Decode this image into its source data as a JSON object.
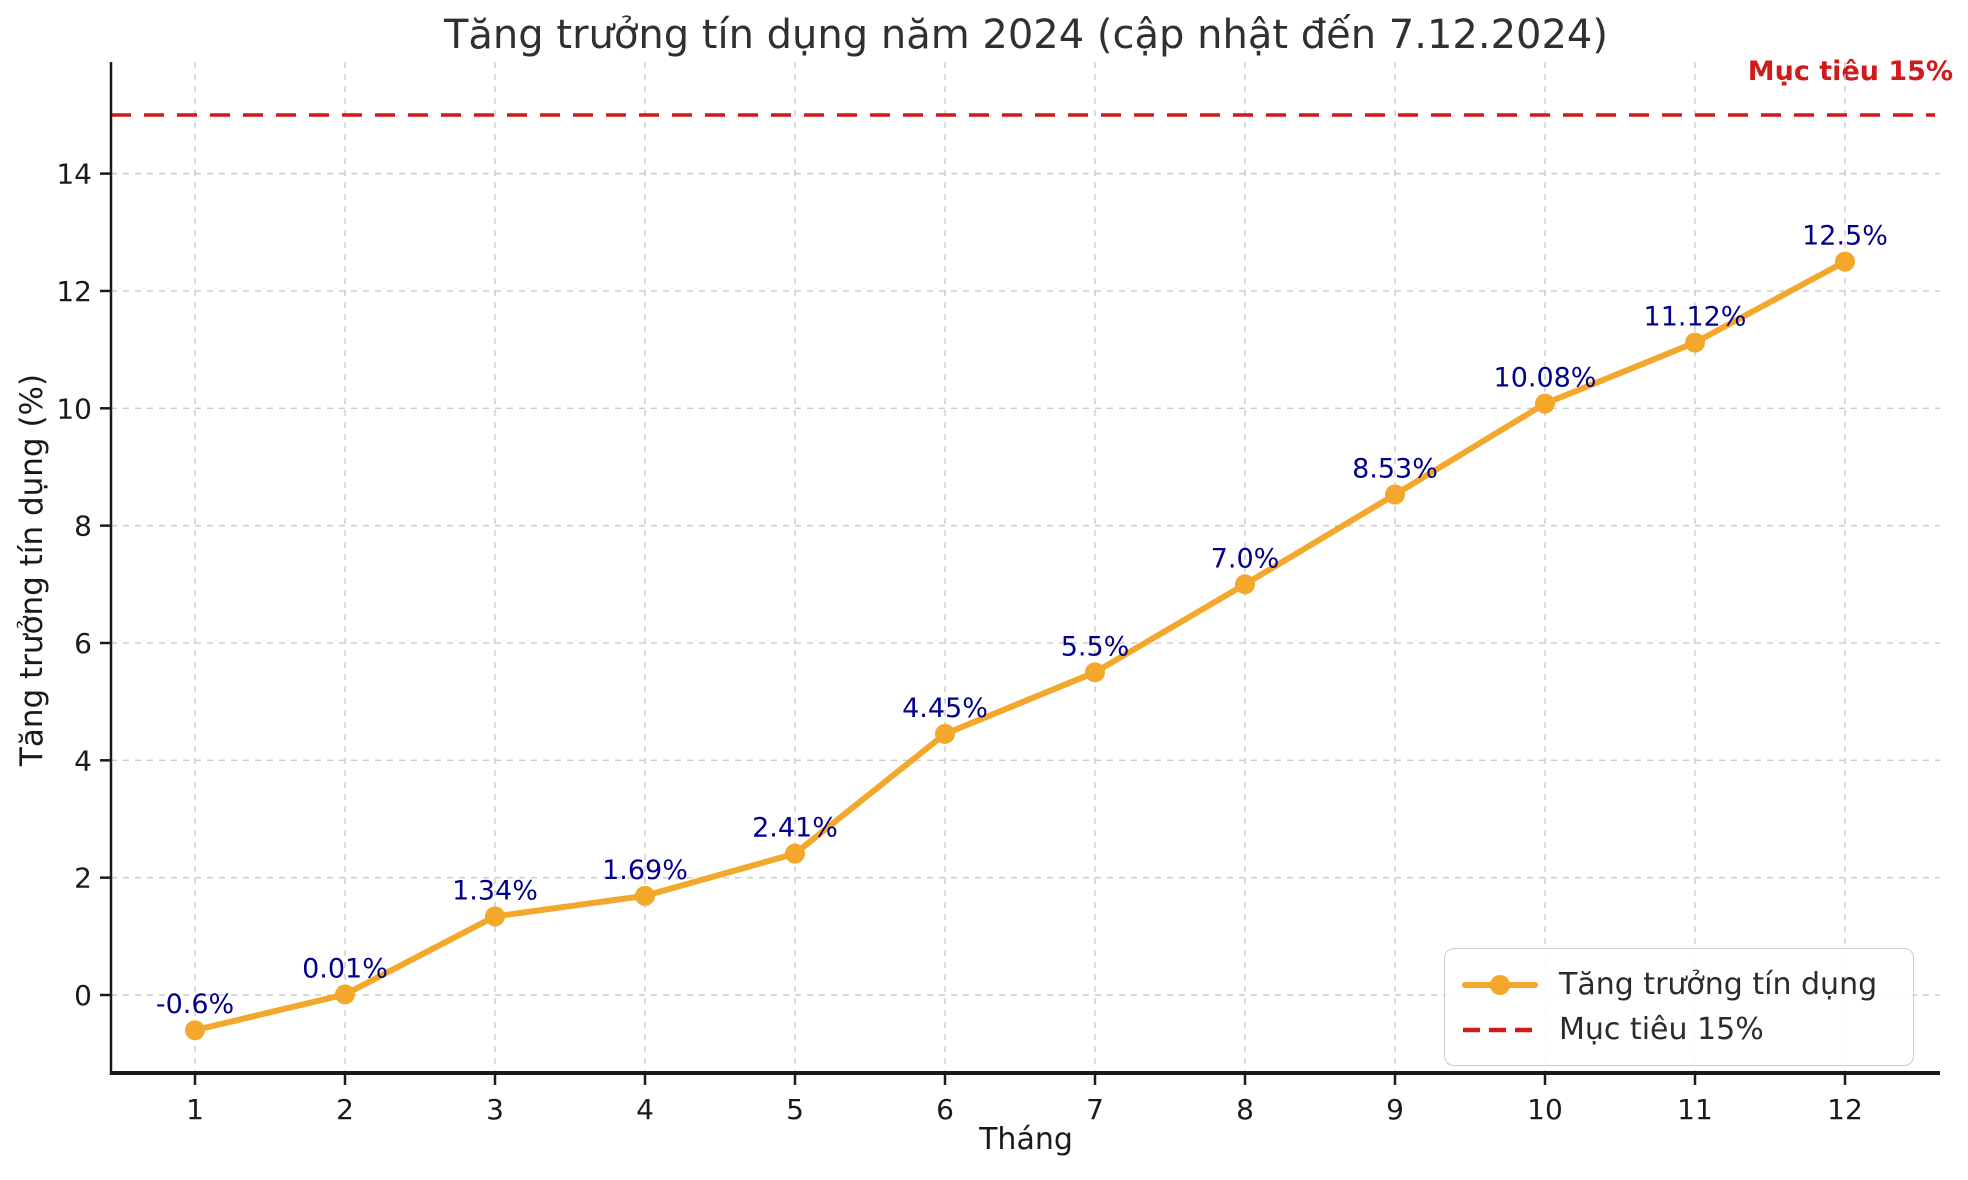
{
  "chart_data": {
    "type": "line",
    "title": "Tăng trưởng tín dụng năm 2024 (cập nhật đến 7.12.2024)",
    "xlabel": "Tháng",
    "ylabel": "Tăng trưởng tín dụng (%)",
    "x": [
      1,
      2,
      3,
      4,
      5,
      6,
      7,
      8,
      9,
      10,
      11,
      12
    ],
    "yticks": [
      0,
      2,
      4,
      6,
      8,
      10,
      12,
      14
    ],
    "ylim": [
      -1.35,
      15.9
    ],
    "grid": true,
    "series": [
      {
        "name": "Tăng trưởng tín dụng",
        "values": [
          -0.6,
          0.01,
          1.34,
          1.69,
          2.41,
          4.45,
          5.5,
          7.0,
          8.53,
          10.08,
          11.12,
          12.5
        ],
        "point_labels": [
          "-0.6%",
          "0.01%",
          "1.34%",
          "1.69%",
          "2.41%",
          "4.45%",
          "5.5%",
          "7.0%",
          "8.53%",
          "10.08%",
          "11.12%",
          "12.5%"
        ],
        "color": "#F3A72B"
      }
    ],
    "target": {
      "value": 15,
      "label": "Mục tiêu 15%",
      "legend_label": "Mục tiêu 15%",
      "color": "#CF1B1B"
    },
    "label_color": "#00008B",
    "axis_color": "#1a1a1a",
    "grid_color": "#cbcbcb",
    "legend_position": "lower right"
  }
}
